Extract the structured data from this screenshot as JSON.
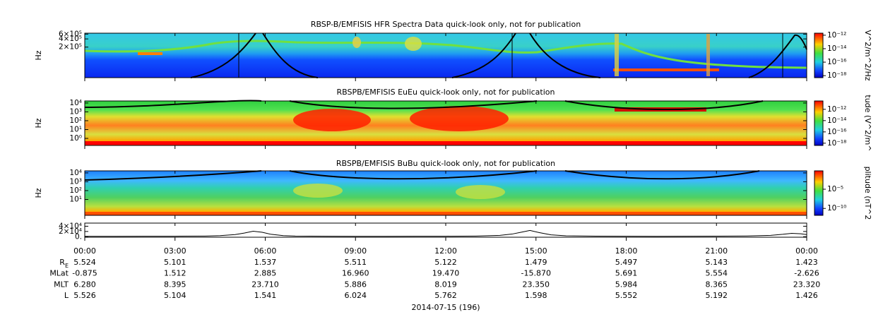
{
  "chart_data": [
    {
      "type": "spectrogram",
      "title": "RBSP-B/EMFISIS  HFR Spectra Data quick-look only, not for publication",
      "y_label": "Hz",
      "log_y": true,
      "ylim": [
        15000,
        650000
      ],
      "yticks": [
        {
          "value": 600000,
          "label": "6×10⁵"
        },
        {
          "value": 400000,
          "label": "4×10⁵"
        },
        {
          "value": 200000,
          "label": "2×10⁵"
        }
      ],
      "colorbar_label": "V^2/m^2/Hz",
      "zlim": [
        5e-19,
        2e-12
      ],
      "zticks": [
        {
          "value": 1e-12,
          "label": "10⁻¹²"
        },
        {
          "value": 1e-14,
          "label": "10⁻¹⁴"
        },
        {
          "value": 1e-16,
          "label": "10⁻¹⁶"
        },
        {
          "value": 1e-18,
          "label": "10⁻¹⁸"
        }
      ]
    },
    {
      "type": "spectrogram",
      "title": "RBSPB/EMFISIS  EuEu quick-look only, not for publication",
      "y_label": "Hz",
      "log_y": true,
      "ylim": [
        0.16,
        17000
      ],
      "yticks": [
        {
          "value": 10000,
          "label": "10⁴"
        },
        {
          "value": 1000,
          "label": "10³"
        },
        {
          "value": 100,
          "label": "10²"
        },
        {
          "value": 10,
          "label": "10¹"
        },
        {
          "value": 1,
          "label": "10⁰"
        }
      ],
      "colorbar_label": "tude (V^2/m^",
      "zlim": [
        4e-19,
        3e-11
      ],
      "zticks": [
        {
          "value": 1e-12,
          "label": "10⁻¹²"
        },
        {
          "value": 1e-14,
          "label": "10⁻¹⁴"
        },
        {
          "value": 1e-16,
          "label": "10⁻¹⁶"
        },
        {
          "value": 1e-18,
          "label": "10⁻¹⁸"
        }
      ]
    },
    {
      "type": "spectrogram",
      "title": "RBSPB/EMFISIS  BuBu quick-look only, not for publication",
      "y_label": "Hz",
      "log_y": true,
      "ylim": [
        0.16,
        17000
      ],
      "yticks": [
        {
          "value": 10000,
          "label": "10⁴"
        },
        {
          "value": 1000,
          "label": "10³"
        },
        {
          "value": 100,
          "label": "10²"
        },
        {
          "value": 10,
          "label": "10¹"
        }
      ],
      "colorbar_label": "plitude (nT^2",
      "zlim": [
        1.6e-12,
        0.6
      ],
      "zticks": [
        {
          "value": 1e-05,
          "label": "10⁻⁵"
        },
        {
          "value": 1e-10,
          "label": "10⁻¹⁰"
        }
      ]
    },
    {
      "type": "line",
      "color": "#000000",
      "xlim": [
        0,
        24
      ],
      "ylim": [
        -2000,
        52000
      ],
      "yticks": [
        {
          "value": 40000,
          "label": "4×10⁴"
        },
        {
          "value": 20000,
          "label": "2×10⁴"
        },
        {
          "value": 0,
          "label": "0."
        }
      ],
      "x": [
        0,
        1,
        2,
        3,
        4,
        4.5,
        5,
        5.3,
        5.6,
        5.9,
        6.2,
        6.6,
        7,
        8,
        9,
        10,
        11,
        12,
        13,
        13.8,
        14.2,
        14.5,
        14.8,
        15.1,
        15.5,
        16,
        17,
        18,
        19,
        20,
        21,
        22,
        22.8,
        23.2,
        23.5,
        23.8,
        24
      ],
      "values": [
        1500,
        1500,
        1600,
        1800,
        2500,
        4000,
        8000,
        14000,
        21000,
        17000,
        9000,
        4000,
        2500,
        1700,
        1500,
        1500,
        1600,
        1800,
        2500,
        5000,
        10000,
        17000,
        24000,
        16000,
        7000,
        3500,
        2000,
        1600,
        1500,
        1600,
        1900,
        2800,
        5000,
        9000,
        13000,
        11000,
        8000
      ]
    }
  ],
  "time_axis": {
    "ticks": [
      "00:00",
      "03:00",
      "06:00",
      "09:00",
      "12:00",
      "15:00",
      "18:00",
      "21:00",
      "00:00"
    ]
  },
  "ephemeris": {
    "rows": [
      {
        "label": "R",
        "sub": "E",
        "values": [
          "5.524",
          "5.101",
          "1.537",
          "5.511",
          "5.122",
          "1.479",
          "5.497",
          "5.143",
          "1.423"
        ]
      },
      {
        "label": "MLat",
        "values": [
          "-0.875",
          "1.512",
          "2.885",
          "16.960",
          "19.470",
          "-15.870",
          "5.691",
          "5.554",
          "-2.626"
        ]
      },
      {
        "label": "MLT",
        "values": [
          "6.280",
          "8.395",
          "23.710",
          "5.886",
          "8.019",
          "23.350",
          "5.984",
          "8.365",
          "23.320"
        ]
      },
      {
        "label": "L",
        "values": [
          "5.526",
          "5.104",
          "1.541",
          "6.024",
          "5.762",
          "1.598",
          "5.552",
          "5.192",
          "1.426"
        ]
      }
    ],
    "date": "2014-07-15 (196)"
  }
}
